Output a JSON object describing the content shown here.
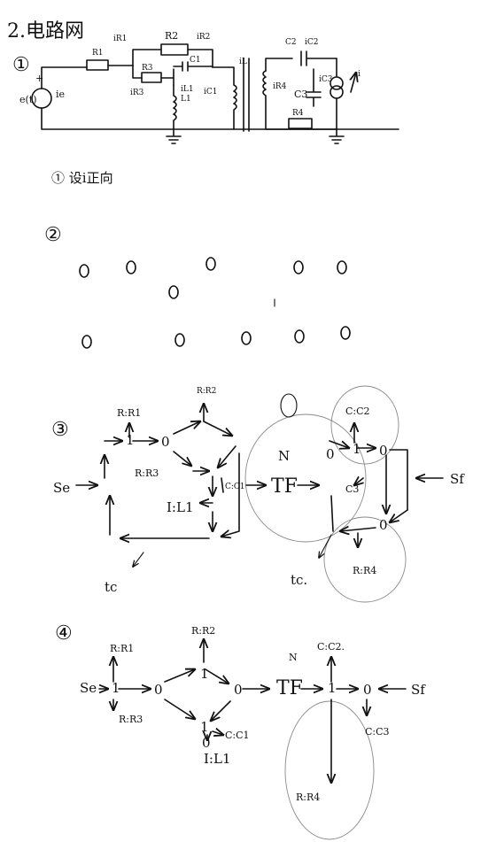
{
  "title": "2.电路网",
  "sections": [
    {
      "num": "①",
      "caption": "① 设i正向"
    },
    {
      "num": "②"
    },
    {
      "num": "③"
    },
    {
      "num": "④"
    }
  ],
  "circuit": {
    "source": "e(t)",
    "source_current": "ie",
    "plus": "+",
    "components": [
      "R1",
      "R2",
      "R3",
      "C1",
      "L1",
      "C2",
      "C3",
      "R4"
    ],
    "currents": [
      "iR1",
      "iR2",
      "iR3",
      "iC1",
      "iL1",
      "iL",
      "iR4",
      "iC2",
      "iC3",
      "i"
    ],
    "labels": {
      "R1": "R1",
      "iR1": "iR1",
      "R2": "R2",
      "iR2": "iR2",
      "R3": "R3",
      "iR3": "iR3",
      "C1": "C1",
      "iC1": "iC1",
      "L1": "L1",
      "iL1": "iL1",
      "iL": "iL",
      "C2": "C2",
      "iC2": "iC2",
      "iR4": "iR4",
      "C3": "C3",
      "iC3": "iC3",
      "R4": "R4",
      "i": "i"
    }
  },
  "section3": {
    "R1": "R:R1",
    "R2": "R:R2",
    "R3": "R:R3",
    "C1": "C:C1",
    "I1": "I:L1",
    "TF": "TF",
    "N": "N",
    "Se": "Se",
    "Sf": "Sf",
    "C2": "C:C2",
    "C3": "C3",
    "R4": "R:R4",
    "tc1": "tc",
    "tc2": "tc.",
    "j1": "1",
    "j0": "0"
  },
  "section4": {
    "R1": "R:R1",
    "R2": "R:R2",
    "R3": "R:R3",
    "C1": "C:C1",
    "I1": "I:L1",
    "TF": "TF",
    "N": "N",
    "Se": "Se",
    "Sf": "Sf",
    "C2": "C:C2.",
    "C3": "C:C3",
    "R4": "R:R4",
    "j1": "1",
    "j0": "0"
  }
}
